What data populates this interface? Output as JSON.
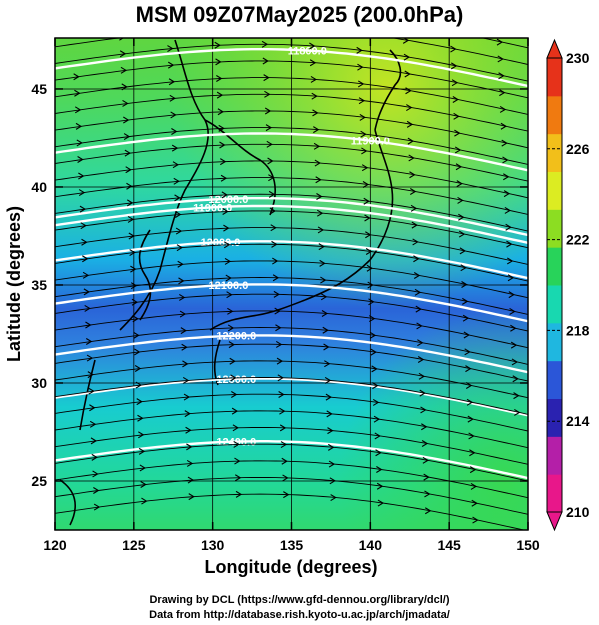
{
  "title": "MSM 09Z07May2025 (200.0hPa)",
  "x_axis": {
    "label": "Longitude (degrees)",
    "min": 120,
    "max": 150,
    "ticks": [
      "120",
      "125",
      "130",
      "135",
      "140",
      "145",
      "150"
    ]
  },
  "y_axis": {
    "label": "Latitude  (degrees)",
    "min": 22.5,
    "max": 47.6,
    "ticks": [
      "25",
      "30",
      "35",
      "40",
      "45"
    ]
  },
  "colorbar": {
    "min": 210,
    "max": 230,
    "labels": [
      "230",
      "226",
      "222",
      "218",
      "214",
      "210"
    ],
    "colors": [
      "#e8178a",
      "#b41fa8",
      "#2a22b0",
      "#2b56d8",
      "#1fb7e0",
      "#18d8b0",
      "#28d35a",
      "#8cdd22",
      "#dcec22",
      "#f2bf1a",
      "#f07a10",
      "#e6321a"
    ]
  },
  "contours": [
    {
      "label": "11800.0",
      "lat": 45.6
    },
    {
      "label": "11900.0",
      "lat": 41.3
    },
    {
      "label": "12000.0",
      "lat": 38.0
    },
    {
      "label": "11900.0",
      "lat": 37.6
    },
    {
      "label": "12000.0",
      "lat": 35.8
    },
    {
      "label": "12100.0",
      "lat": 33.6
    },
    {
      "label": "12200.0",
      "lat": 31.0
    },
    {
      "label": "12300.0",
      "lat": 28.8
    },
    {
      "label": "12400.0",
      "lat": 25.6
    }
  ],
  "credits": [
    "Drawing by DCL (https://www.gfd-dennou.org/library/dcl/)",
    "Data from http://database.rish.kyoto-u.ac.jp/arch/jmadata/"
  ]
}
